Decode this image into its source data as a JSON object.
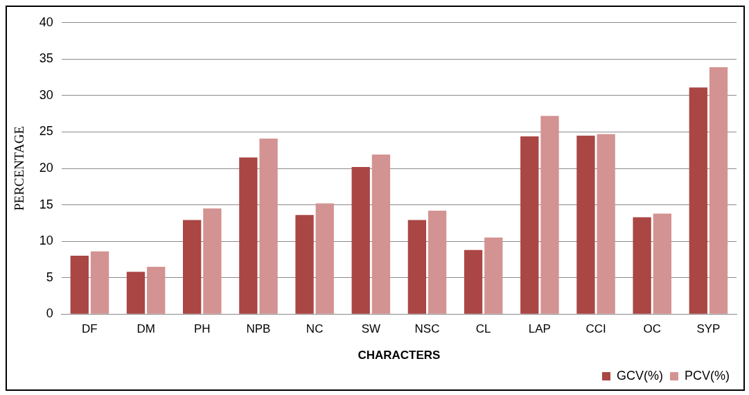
{
  "chart_data": {
    "type": "bar",
    "xlabel": "CHARACTERS",
    "ylabel": "PERCENTAGE",
    "categories": [
      "DF",
      "DM",
      "PH",
      "NPB",
      "NC",
      "SW",
      "NSC",
      "CL",
      "LAP",
      "CCI",
      "OC",
      "SYP"
    ],
    "series": [
      {
        "name": "GCV(%)",
        "color": "#aa4644",
        "values": [
          8.0,
          5.8,
          12.9,
          21.5,
          13.6,
          20.2,
          12.9,
          8.8,
          24.4,
          24.5,
          13.3,
          31.1
        ]
      },
      {
        "name": "PCV(%)",
        "color": "#d39392",
        "values": [
          8.6,
          6.5,
          14.5,
          24.1,
          15.2,
          21.9,
          14.2,
          10.5,
          27.2,
          24.7,
          13.8,
          33.9
        ]
      }
    ],
    "ylim": [
      0,
      40
    ],
    "yticks": [
      0,
      5,
      10,
      15,
      20,
      25,
      30,
      35,
      40
    ],
    "grid": "y",
    "legend": "bottom right"
  }
}
